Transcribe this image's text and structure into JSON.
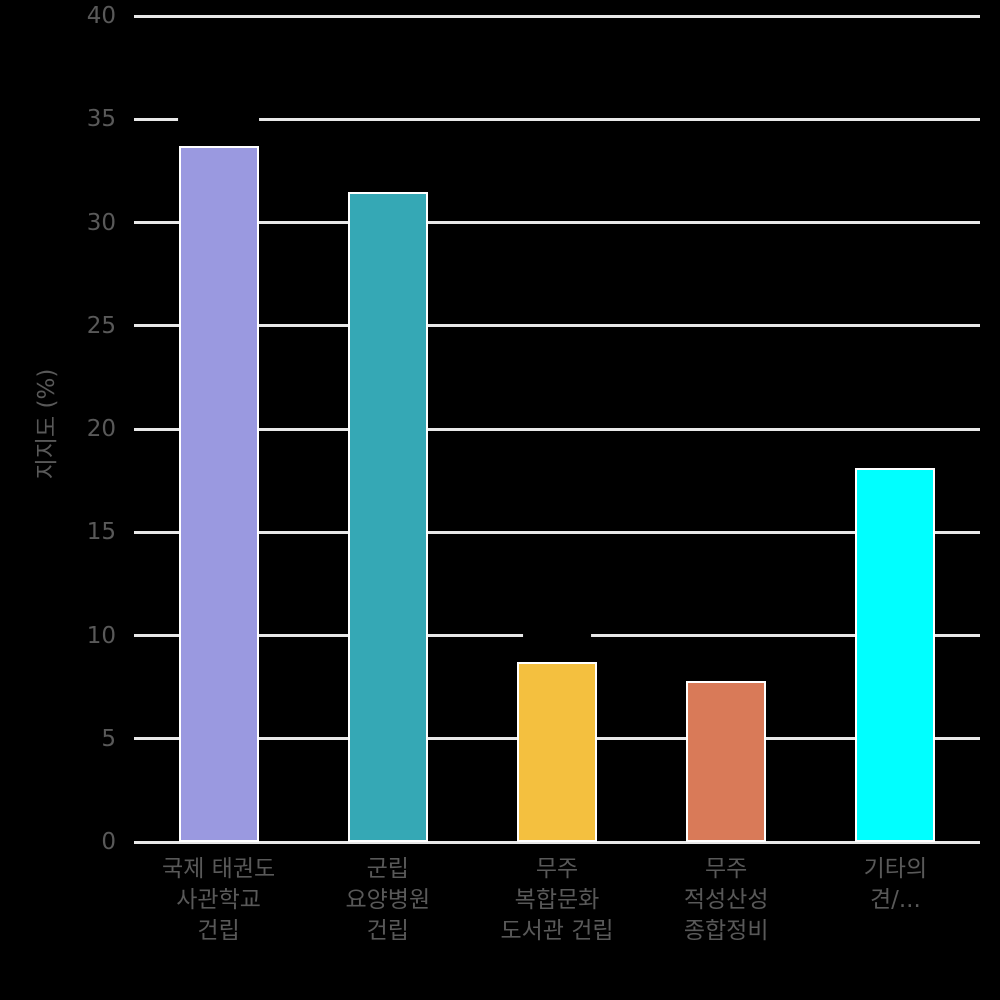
{
  "chart_data": {
    "type": "bar",
    "title": "",
    "xlabel": "",
    "ylabel": "지지도 (%)",
    "ylim": [
      0,
      40
    ],
    "yticks": [
      0,
      5,
      10,
      15,
      20,
      25,
      30,
      35,
      40
    ],
    "grid": true,
    "legend": "none",
    "categories": [
      "국제 태권도\n사관학교\n건립",
      "군립\n요양병원\n건립",
      "무주\n복합문화\n도서관 건립",
      "무주\n적성산성\n종합정비",
      "기타의견/..."
    ],
    "values": [
      33.7,
      31.5,
      8.7,
      7.8,
      18.1
    ],
    "value_labels": [
      "33.7%",
      "31.5%",
      "8.7%",
      "7.8%",
      "18.1%"
    ],
    "bar_colors": [
      "#9a99e0",
      "#35a8b5",
      "#f4c03f",
      "#d97a58",
      "#00ffff"
    ],
    "colors": {
      "background": "#000000",
      "gridline": "#e8e8e8",
      "bar_border": "#ffffff",
      "tick_label": "#595959",
      "axis_title": "#595959",
      "value_label": "#000000"
    }
  }
}
